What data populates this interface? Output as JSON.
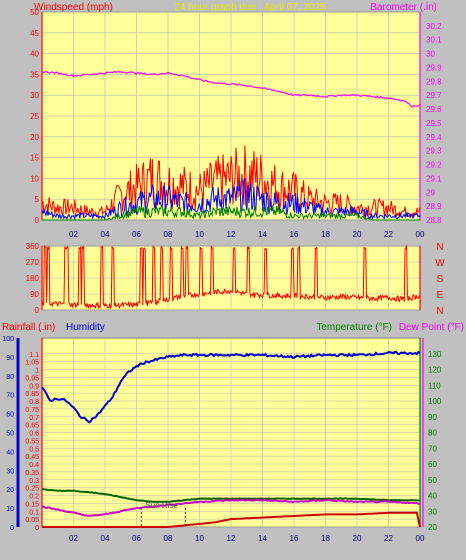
{
  "header": {
    "left_label": "Windspeed (mph)",
    "center_label": "24 hour graph due : April 07, 2025",
    "right_label": "Barometer (.in)"
  },
  "colors": {
    "plot_bg": "#ffff99",
    "grid": "#b8b8b8",
    "wind_gust": "#ff0000",
    "wind_avg": "#0000ff",
    "wind_low": "#008000",
    "barometer": "#ff00ff",
    "humidity": "#0000cc",
    "temperature": "#006400",
    "dewpoint": "#cc00cc",
    "rainfall": "#cc0000",
    "label_red": "#ff0000",
    "label_magenta": "#ff00ff",
    "label_yellow": "#e8e800"
  },
  "time_ticks": [
    "02",
    "04",
    "06",
    "08",
    "10",
    "12",
    "14",
    "16",
    "18",
    "20",
    "22",
    "00"
  ],
  "chart_data": [
    {
      "type": "line",
      "name": "wind-barometer",
      "x_hours_start": 0,
      "x_hours_end": 24,
      "left_axis": {
        "label": "Windspeed (mph)",
        "ylim": [
          0,
          50
        ],
        "ticks": [
          "0",
          "5",
          "10",
          "15",
          "20",
          "25",
          "30",
          "35",
          "40",
          "45",
          "50"
        ]
      },
      "right_axis": {
        "label": "Barometer (.in)",
        "ylim": [
          28.8,
          30.3
        ],
        "ticks": [
          "28.8",
          "28.9",
          "29",
          "29.1",
          "29.2",
          "29.3",
          "29.4",
          "29.5",
          "29.6",
          "29.7",
          "29.8",
          "29.9",
          "30",
          "30.1",
          "30.2"
        ]
      },
      "series": [
        {
          "name": "Barometer (.in)",
          "axis": "right",
          "x": [
            0,
            1,
            2,
            3,
            4,
            5,
            6,
            7,
            8,
            9,
            10,
            11,
            12,
            13,
            14,
            15,
            16,
            17,
            18,
            19,
            20,
            21,
            22,
            23,
            23.5,
            24
          ],
          "y": [
            29.87,
            29.86,
            29.84,
            29.85,
            29.86,
            29.87,
            29.86,
            29.85,
            29.86,
            29.84,
            29.81,
            29.79,
            29.78,
            29.77,
            29.75,
            29.73,
            29.7,
            29.7,
            29.69,
            29.7,
            29.7,
            29.69,
            29.68,
            29.66,
            29.62,
            29.63
          ]
        },
        {
          "axis": "left",
          "x": [
            0,
            1,
            2,
            3,
            4,
            5,
            6,
            7,
            8,
            9,
            10,
            11,
            12,
            13,
            14,
            15,
            16,
            17,
            18,
            19,
            20,
            21,
            22,
            23,
            24
          ],
          "y": [
            4,
            3,
            3,
            2,
            2,
            6,
            8,
            10,
            9,
            8,
            7,
            9,
            10,
            11,
            10,
            8,
            7,
            5,
            4,
            4,
            3,
            3,
            3,
            2,
            2
          ]
        },
        {
          "axis": "left",
          "x": [
            0,
            1,
            2,
            3,
            4,
            5,
            6,
            7,
            8,
            9,
            10,
            11,
            12,
            13,
            14,
            15,
            16,
            17,
            18,
            19,
            20,
            21,
            22,
            23,
            24
          ],
          "y": [
            2,
            1,
            1,
            1,
            1,
            3,
            4,
            5,
            5,
            4,
            4,
            5,
            5,
            6,
            5,
            4,
            4,
            3,
            2,
            2,
            2,
            1,
            1,
            1,
            1
          ]
        },
        {
          "axis": "left",
          "x": [
            0,
            1,
            2,
            3,
            4,
            5,
            6,
            7,
            8,
            9,
            10,
            11,
            12,
            13,
            14,
            15,
            16,
            17,
            18,
            19,
            20,
            21,
            22,
            23,
            24
          ],
          "y": [
            0,
            0,
            0,
            0,
            0,
            1,
            2,
            2,
            2,
            2,
            1,
            2,
            2,
            2,
            2,
            2,
            1,
            1,
            1,
            1,
            1,
            0,
            0,
            0,
            0
          ]
        }
      ]
    },
    {
      "type": "line",
      "name": "wind-direction",
      "x_hours_start": 0,
      "x_hours_end": 24,
      "left_axis": {
        "ylim": [
          0,
          360
        ],
        "ticks": [
          "0",
          "90",
          "180",
          "270",
          "360"
        ]
      },
      "right_axis": {
        "labels": [
          "N",
          "W",
          "S",
          "E",
          "N"
        ]
      },
      "series": [
        {
          "axis": "left",
          "x": [
            0,
            2,
            4,
            6,
            7,
            8,
            9,
            10,
            11,
            12,
            13,
            14,
            15,
            16,
            17,
            18,
            19,
            20,
            21,
            22,
            23,
            24
          ],
          "y": [
            40,
            30,
            25,
            30,
            40,
            60,
            80,
            90,
            100,
            110,
            90,
            85,
            80,
            80,
            75,
            70,
            75,
            70,
            65,
            70,
            60,
            80
          ]
        }
      ]
    },
    {
      "type": "line",
      "name": "rain-humidity-temperature",
      "x_hours_start": 0,
      "x_hours_end": 24,
      "left_axis": {
        "label": "Rainfall (.in)",
        "ylim": [
          0,
          1.2
        ],
        "ticks": [
          "0",
          "0.05",
          "0.1",
          "0.15",
          "0.2",
          "0.25",
          "0.3",
          "0.35",
          "0.4",
          "0.45",
          "0.5",
          "0.55",
          "0.6",
          "0.65",
          "0.7",
          "0.75",
          "0.8",
          "0.85",
          "0.9",
          "0.95",
          "1",
          "1.05",
          "1.1"
        ]
      },
      "humidity_axis": {
        "label": "Humidity",
        "ylim": [
          0,
          100
        ],
        "ticks": [
          "0",
          "10",
          "20",
          "30",
          "40",
          "50",
          "60",
          "70",
          "80",
          "90",
          "100"
        ]
      },
      "right_axis": {
        "label": "Temperature (°F)",
        "label2": "Dew Point (°F)",
        "ylim": [
          20,
          140
        ],
        "ticks": [
          "20",
          "30",
          "40",
          "50",
          "60",
          "70",
          "80",
          "90",
          "100",
          "110",
          "120",
          "130"
        ]
      },
      "annotations": [
        "Sun Rise"
      ],
      "series": [
        {
          "name": "Humidity",
          "axis": "humidity",
          "x": [
            0,
            0.5,
            1,
            1.5,
            2,
            2.5,
            3,
            3.5,
            4,
            4.5,
            5,
            5.5,
            6,
            6.5,
            7,
            8,
            9,
            10,
            12,
            14,
            16,
            18,
            20,
            22,
            24
          ],
          "y": [
            74,
            67,
            68,
            67,
            63,
            58,
            56,
            59,
            64,
            69,
            77,
            82,
            85,
            87,
            88,
            90,
            91,
            91,
            91,
            91,
            90,
            91,
            91,
            92,
            92
          ]
        },
        {
          "name": "Temperature (°F)",
          "axis": "right",
          "x": [
            0,
            1,
            2,
            3,
            4,
            5,
            6,
            7,
            8,
            9,
            10,
            12,
            14,
            16,
            18,
            20,
            22,
            24
          ],
          "y": [
            44,
            43,
            43,
            42,
            41,
            39,
            37,
            36,
            36,
            37,
            38,
            38,
            38,
            38,
            38,
            38,
            37,
            37
          ]
        },
        {
          "name": "Dew Point (°F)",
          "axis": "right",
          "x": [
            0,
            1,
            2,
            3,
            4,
            5,
            6,
            7,
            8,
            9,
            10,
            12,
            14,
            16,
            18,
            20,
            22,
            24
          ],
          "y": [
            33,
            31,
            29,
            27,
            28,
            30,
            32,
            33,
            34,
            35,
            36,
            37,
            37,
            36,
            37,
            36,
            36,
            35
          ]
        },
        {
          "name": "Rainfall (.in)",
          "axis": "left",
          "x": [
            0,
            2,
            4,
            6,
            8,
            9,
            10,
            11,
            12,
            14,
            16,
            18,
            20,
            22,
            23.8,
            24
          ],
          "y": [
            0,
            0,
            0,
            0,
            0,
            0.01,
            0.02,
            0.03,
            0.05,
            0.06,
            0.07,
            0.08,
            0.08,
            0.09,
            0.09,
            0
          ]
        }
      ]
    }
  ]
}
